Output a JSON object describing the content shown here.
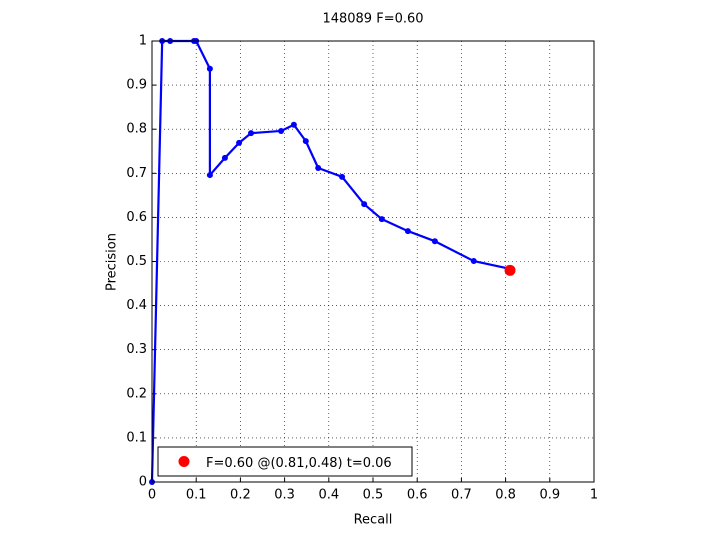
{
  "chart_data": {
    "type": "line",
    "title": "148089 F=0.60",
    "xlabel": "Recall",
    "ylabel": "Precision",
    "xlim": [
      0,
      1
    ],
    "ylim": [
      0,
      1
    ],
    "xticks": [
      0,
      0.1,
      0.2,
      0.3,
      0.4,
      0.5,
      0.6,
      0.7,
      0.8,
      0.9,
      1
    ],
    "yticks": [
      0,
      0.1,
      0.2,
      0.3,
      0.4,
      0.5,
      0.6,
      0.7,
      0.8,
      0.9,
      1
    ],
    "grid": true,
    "legend": "lower left",
    "series": [
      {
        "color": "#0000ff",
        "marker": true,
        "x": [
          0,
          0.023,
          0.041,
          0.095,
          0.1,
          0.131,
          0.131,
          0.165,
          0.197,
          0.224,
          0.292,
          0.321,
          0.348,
          0.376,
          0.43,
          0.48,
          0.52,
          0.579,
          0.64,
          0.728,
          0.812
        ],
        "values": [
          0,
          1,
          1,
          1,
          1,
          0.937,
          0.696,
          0.735,
          0.769,
          0.791,
          0.796,
          0.81,
          0.773,
          0.712,
          0.692,
          0.63,
          0.596,
          0.569,
          0.546,
          0.501,
          0.483
        ]
      },
      {
        "name": "F=0.60 @(0.81,0.48) t=0.06",
        "color": "#ff0000",
        "marker": true,
        "line": false,
        "x": [
          0.81
        ],
        "values": [
          0.48
        ]
      }
    ]
  }
}
